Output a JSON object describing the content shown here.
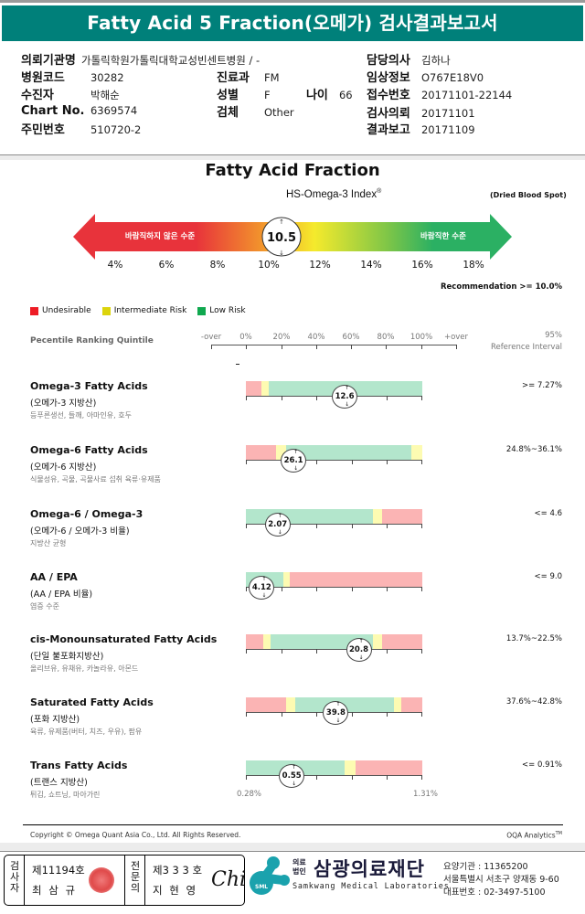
{
  "report": {
    "title": "Fatty Acid 5 Fraction(오메가) 검사결과보고서"
  },
  "patient_info": {
    "requesting_institution_label": "의뢰기관명",
    "requesting_institution": "가톨릭학원가톨릭대학교성빈센트병원 / -",
    "hospital_code_label": "병원코드",
    "hospital_code": "30282",
    "department_label": "진료과",
    "department": "FM",
    "patient_label": "수진자",
    "patient": "박해순",
    "sex_label": "성별",
    "sex": "F",
    "age_label": "나이",
    "age": "66",
    "chart_no_label": "Chart No.",
    "chart_no": "6369574",
    "specimen_label": "검체",
    "specimen": "Other",
    "resident_no_label": "주민번호",
    "resident_no": "510720-2",
    "physician_label": "담당의사",
    "physician": "김하나",
    "clinical_info_label": "임상정보",
    "clinical_info": "O767E18V0",
    "receipt_no_label": "접수번호",
    "receipt_no": "20171101-22144",
    "test_request_label": "검사의뢰",
    "test_request": "20171101",
    "result_report_label": "결과보고",
    "result_report": "20171109"
  },
  "chart_data": [
    {
      "type": "gauge",
      "title": "Fatty Acid Fraction",
      "subtitle": "HS-Omega-3 Index",
      "subtitle_mark": "®",
      "specimen_note": "(Dried Blood Spot)",
      "left_label": "바람직하지 않은 수준",
      "right_label": "바람직한 수준",
      "ticks": [
        "4%",
        "6%",
        "8%",
        "10%",
        "12%",
        "14%",
        "16%",
        "18%"
      ],
      "range": [
        3,
        19
      ],
      "value": 10.5,
      "value_label": "10.5",
      "recommendation": "Recommendation  >= 10.0%",
      "colors": [
        "#e8333b",
        "#f5ea2c",
        "#2bb063"
      ]
    },
    {
      "type": "bar",
      "title": "Pecentile Ranking Quintile",
      "legend": [
        {
          "label": "Undesirable",
          "color": "#ee1c25"
        },
        {
          "label": "Intermediate Risk",
          "color": "#dcd40c"
        },
        {
          "label": "Low Risk",
          "color": "#10a84f"
        }
      ],
      "axis_labels": [
        "-over",
        "0%",
        "20%",
        "40%",
        "60%",
        "80%",
        "100%",
        "+over"
      ],
      "ref_header_line1": "95%",
      "ref_header_line2": "Reference Interval",
      "percentile_range": [
        0,
        100
      ],
      "zone_colors": {
        "red": "#fbb4b4",
        "yellow": "#fdfbb2",
        "green": "#b3e6cc"
      },
      "rows": [
        {
          "name": "Omega-3 Fatty Acids",
          "korean": "(오메가-3 지방산)",
          "foods": "등푸른생선, 들깨, 아마인유, 호두",
          "value": "12.6",
          "marker_percentile": 56,
          "zones": [
            [
              "red",
              0,
              9
            ],
            [
              "yellow",
              9,
              13
            ],
            [
              "green",
              13,
              100
            ]
          ],
          "reference": ">= 7.27%"
        },
        {
          "name": "Omega-6 Fatty Acids",
          "korean": "(오메가-6 지방산)",
          "foods": "식물성유, 곡물, 곡물사료 섭취 육류·유제품",
          "value": "26.1",
          "marker_percentile": 27,
          "zones": [
            [
              "red",
              0,
              17
            ],
            [
              "yellow",
              17,
              23
            ],
            [
              "green",
              23,
              94
            ],
            [
              "yellow",
              94,
              100
            ]
          ],
          "reference": "24.8%~36.1%"
        },
        {
          "name": "Omega-6 / Omega-3",
          "korean": "(오메가-6 / 오메가-3 비율)",
          "foods": "지방산 균형",
          "value": "2.07",
          "marker_percentile": 18,
          "zones": [
            [
              "green",
              0,
              72
            ],
            [
              "yellow",
              72,
              77
            ],
            [
              "red",
              77,
              100
            ]
          ],
          "reference": "<= 4.6"
        },
        {
          "name": "AA / EPA",
          "korean": "(AA / EPA 비율)",
          "foods": "염증 수준",
          "value": "4.12",
          "marker_percentile": 9,
          "zones": [
            [
              "green",
              0,
              21
            ],
            [
              "yellow",
              21,
              25
            ],
            [
              "red",
              25,
              100
            ]
          ],
          "reference": "<= 9.0"
        },
        {
          "name": "cis-Monounsaturated Fatty Acids",
          "korean": "(단일 불포화지방산)",
          "foods": "올리브유, 유채유, 카놀라유, 아몬드",
          "value": "20.8",
          "marker_percentile": 64,
          "zones": [
            [
              "red",
              0,
              10
            ],
            [
              "yellow",
              10,
              14
            ],
            [
              "green",
              14,
              72
            ],
            [
              "yellow",
              72,
              77
            ],
            [
              "red",
              77,
              100
            ]
          ],
          "reference": "13.7%~22.5%"
        },
        {
          "name": "Saturated Fatty Acids",
          "korean": "(포화 지방산)",
          "foods": "육류, 유제품(버터, 치즈, 우유), 팜유",
          "value": "39.8",
          "marker_percentile": 51,
          "zones": [
            [
              "red",
              0,
              23
            ],
            [
              "yellow",
              23,
              28
            ],
            [
              "green",
              28,
              84
            ],
            [
              "yellow",
              84,
              88
            ],
            [
              "red",
              88,
              100
            ]
          ],
          "reference": "37.6%~42.8%"
        },
        {
          "name": "Trans Fatty Acids",
          "korean": "(트랜스 지방산)",
          "foods": "튀김, 쇼트닝, 마아가린",
          "value": "0.55",
          "marker_percentile": 26,
          "zones": [
            [
              "green",
              0,
              56
            ],
            [
              "yellow",
              56,
              62
            ],
            [
              "red",
              62,
              100
            ]
          ],
          "reference": "<= 0.91%",
          "scale_min_label": "0.28%",
          "scale_max_label": "1.31%"
        }
      ]
    }
  ],
  "footer": {
    "copyright": "Copyright © Omega Quant Asia Co., Ltd.  All Rights Reserved.",
    "brand": "OQA Analytics",
    "brand_mark": "TM"
  },
  "signatures": {
    "tester_label": "검사자",
    "tester_no": "제11194호",
    "tester_name": "최 삼 규",
    "specialist_label": "전문의",
    "specialist_no": "제3 3 3 호",
    "specialist_name": "지 현 영",
    "signature": "Chi"
  },
  "lab": {
    "logo_text": "SML",
    "corp_type_line1": "의료",
    "corp_type_line2": "법인",
    "name_kr": "삼광의료재단",
    "name_en": "Samkwang Medical Laboratories",
    "care_code": "요양기관 : 11365200",
    "address": "서울특별시 서초구 양재동 9-60",
    "phone": "대표번호 : 02-3497-5100"
  }
}
